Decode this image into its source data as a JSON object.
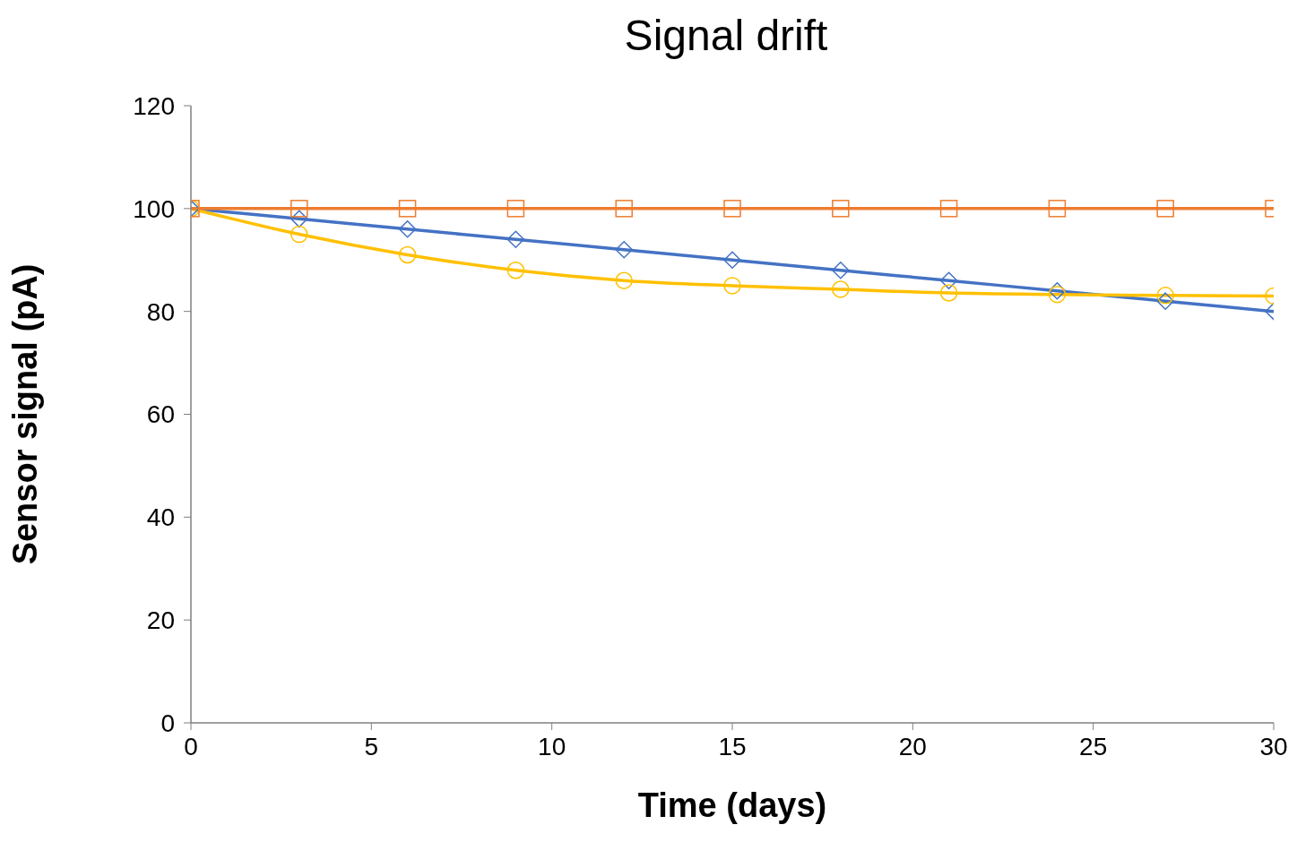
{
  "chart_data": {
    "type": "line",
    "title": "Signal drift",
    "xlabel": "Time (days)",
    "ylabel": "Sensor signal (pA)",
    "x": [
      0,
      3,
      6,
      9,
      12,
      15,
      18,
      21,
      24,
      27,
      30
    ],
    "series": [
      {
        "color": "#4472c4",
        "marker": "diamond",
        "values": [
          100,
          98,
          96,
          94,
          92,
          90,
          88,
          86,
          84,
          82,
          80
        ]
      },
      {
        "color": "#ffc000",
        "marker": "circle",
        "values": [
          100,
          95,
          91,
          88,
          86,
          85,
          84.3,
          83.6,
          83.3,
          83.1,
          83
        ]
      },
      {
        "color": "#ed7d31",
        "marker": "square",
        "values": [
          100,
          100,
          100,
          100,
          100,
          100,
          100,
          100,
          100,
          100,
          100
        ]
      }
    ],
    "xlim": [
      0,
      30
    ],
    "xticks": [
      0,
      5,
      10,
      15,
      20,
      25,
      30
    ],
    "ylim": [
      0,
      120
    ],
    "yticks": [
      0,
      20,
      40,
      60,
      80,
      100,
      120
    ],
    "line_style": "solid"
  }
}
